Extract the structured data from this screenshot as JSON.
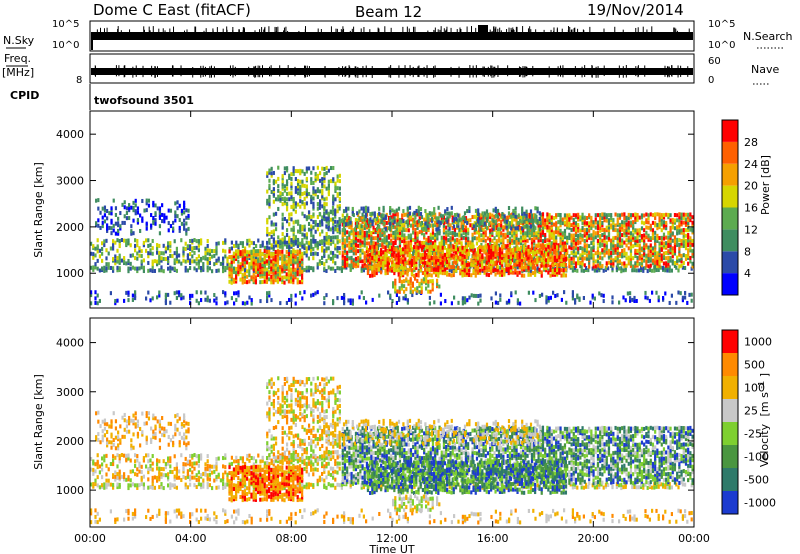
{
  "header": {
    "station": "Dome C East (fitACF)",
    "beam": "Beam 12",
    "date": "19/Nov/2014"
  },
  "panels": {
    "nsky": {
      "left_label": "N.Sky",
      "right_label": "N.Search",
      "ticks_left": [
        "10^5",
        "10^0"
      ],
      "ticks_right": [
        "10^5",
        "10^0"
      ]
    },
    "freq": {
      "left_label_1": "Freq.",
      "left_label_2": "[MHz]",
      "right_label": "Nave",
      "ticks_left": [
        "8"
      ],
      "ticks_right": [
        "60",
        "0"
      ]
    },
    "cpid": {
      "label": "CPID",
      "text": "twofsound 3501"
    }
  },
  "colors": {
    "power_scale": [
      "#0000ff",
      "#2b4aa8",
      "#3f8d60",
      "#5cab50",
      "#d6d600",
      "#f5a000",
      "#ff6000",
      "#ff0000"
    ],
    "velocity_scale": [
      "#1c3bd0",
      "#2f7a6a",
      "#4a9640",
      "#7ecf30",
      "#c8c8c8",
      "#f1b000",
      "#ff8a00",
      "#ff0000"
    ]
  },
  "chart_data": [
    {
      "type": "heatmap",
      "name": "Power",
      "ylabel": "Slant Range [km]",
      "yticks": [
        1000,
        2000,
        3000,
        4000
      ],
      "ylim": [
        250,
        4500
      ],
      "xlim": [
        "00:00",
        "24:00"
      ],
      "colorbar": {
        "label": "Power [dB]",
        "ticks": [
          4,
          8,
          12,
          16,
          20,
          24,
          28
        ],
        "range": [
          0,
          32
        ]
      }
    },
    {
      "type": "heatmap",
      "name": "Velocity",
      "ylabel": "Slant Range [km]",
      "yticks": [
        1000,
        2000,
        3000,
        4000
      ],
      "ylim": [
        250,
        4500
      ],
      "xlim": [
        "00:00",
        "24:00"
      ],
      "xlabel": "Time UT",
      "xticks": [
        "00:00",
        "04:00",
        "08:00",
        "12:00",
        "16:00",
        "20:00",
        "00:00"
      ],
      "colorbar": {
        "label_main": "Velocity",
        "label_unit": "[m s",
        "label_sup": "-1",
        "label_close": "]",
        "ticks": [
          "1000",
          "500",
          "100",
          "25",
          "-25",
          "-100",
          "-500",
          "-1000"
        ]
      }
    }
  ]
}
